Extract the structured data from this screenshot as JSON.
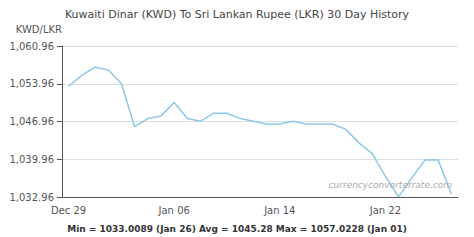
{
  "chart_data": {
    "type": "line",
    "title": "Kuwaiti Dinar (KWD) To Sri Lankan Rupee (LKR) 30 Day History",
    "ylabel": "KWD/LKR",
    "annotations": [
      "currencyconverterrate.com",
      "Min = 1033.0089 (Jan 26) Avg = 1045.28 Max = 1057.0228 (Jan 01)"
    ],
    "categories": [
      "Dec 29",
      null,
      null,
      null,
      null,
      null,
      null,
      null,
      "Jan 06",
      null,
      null,
      null,
      null,
      null,
      null,
      null,
      "Jan 14",
      null,
      null,
      null,
      null,
      null,
      null,
      null,
      "Jan 22",
      null,
      null,
      null,
      null,
      null
    ],
    "values": [
      1053.5,
      1055.5,
      1057.02,
      1056.5,
      1054.0,
      1046.0,
      1047.5,
      1048.0,
      1050.5,
      1047.5,
      1047.0,
      1048.5,
      1048.5,
      1047.5,
      1047.0,
      1046.5,
      1046.5,
      1047.0,
      1046.5,
      1046.5,
      1046.5,
      1045.5,
      1043.0,
      1041.0,
      1036.8,
      1033.0,
      1036.5,
      1039.8,
      1039.8,
      1033.5
    ],
    "color": "#8ec8e8",
    "ylim": [
      1032.96,
      1060.96
    ],
    "yticks": [
      {
        "value": 1032.96,
        "label": "1,032.96"
      },
      {
        "value": 1039.96,
        "label": "1,039.96"
      },
      {
        "value": 1046.96,
        "label": "1,046.96"
      },
      {
        "value": 1053.96,
        "label": "1,053.96"
      },
      {
        "value": 1060.96,
        "label": "1,060.96"
      }
    ],
    "grid": true
  }
}
